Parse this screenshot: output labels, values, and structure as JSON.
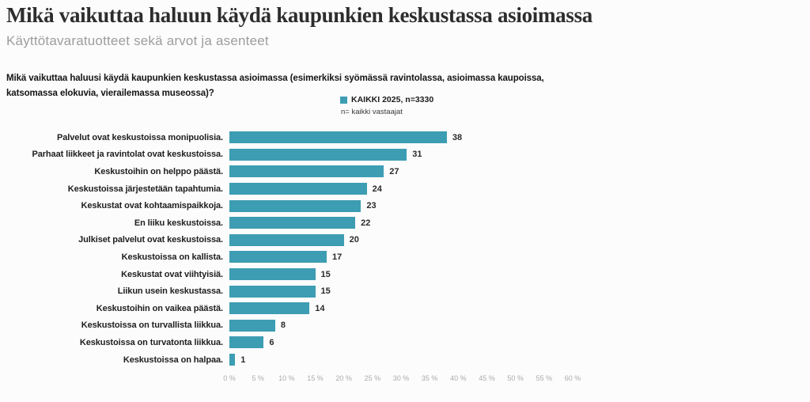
{
  "header": {
    "title": "Mikä vaikuttaa haluun käydä kaupunkien keskustassa asioimassa",
    "subtitle": "Käyttötavaratuotteet sekä arvot ja asenteet"
  },
  "question": "Mikä vaikuttaa haluusi käydä kaupunkien keskustassa asioimassa (esimerkiksi syömässä ravintolassa, asioimassa kaupoissa, katsomassa elokuvia, vierailemassa museossa)?",
  "legend": {
    "series_label": "KAIKKI 2025, n=3330",
    "note": "n= kaikki vastaajat",
    "swatch_color": "#3d9db3"
  },
  "chart_data": {
    "type": "bar",
    "orientation": "horizontal",
    "title": "Mikä vaikuttaa haluun käydä kaupunkien keskustassa asioimassa",
    "series_name": "KAIKKI 2025, n=3330",
    "categories": [
      "Palvelut ovat keskustoissa monipuolisia.",
      "Parhaat liikkeet ja ravintolat ovat keskustoissa.",
      "Keskustoihin on helppo päästä.",
      "Keskustoissa järjestetään tapahtumia.",
      "Keskustat ovat kohtaamispaikkoja.",
      "En liiku keskustoissa.",
      "Julkiset palvelut ovat keskustoissa.",
      "Keskustoissa on kallista.",
      "Keskustat ovat viihtyisiä.",
      "Liikun usein keskustassa.",
      "Keskustoihin on vaikea päästä.",
      "Keskustoissa on turvallista liikkua.",
      "Keskustoissa on turvatonta liikkua.",
      "Keskustoissa on halpaa."
    ],
    "values": [
      38,
      31,
      27,
      24,
      23,
      22,
      20,
      17,
      15,
      15,
      14,
      8,
      6,
      1
    ],
    "value_unit": "%",
    "xlabel": "",
    "ylabel": "",
    "xlim": [
      0,
      60
    ],
    "x_ticks": [
      "0 %",
      "5 %",
      "10 %",
      "15 %",
      "20 %",
      "25 %",
      "30 %",
      "35 %",
      "40 %",
      "45 %",
      "50 %",
      "55 %",
      "60 %"
    ],
    "grid": false,
    "legend_position": "top",
    "bar_color": "#3d9db3"
  }
}
